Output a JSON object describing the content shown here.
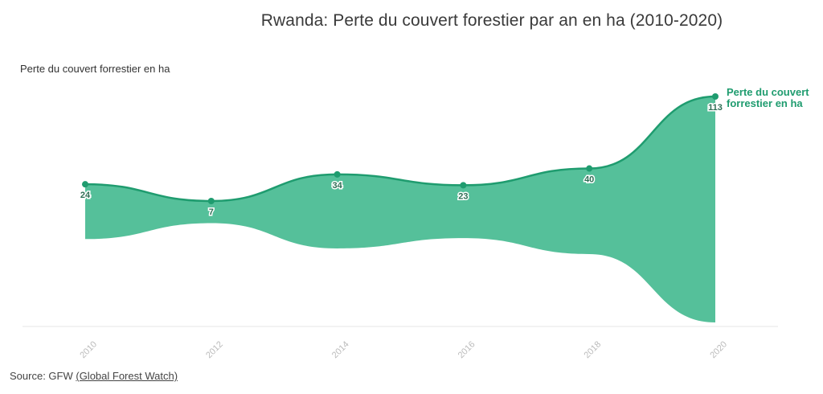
{
  "chart_data": {
    "type": "area",
    "title": "Rwanda: Perte du couvert forestier par an en ha (2010-2020)",
    "ylabel": "Perte du couvert forrestier en ha",
    "xlabel": "",
    "x": [
      "2010",
      "2012",
      "2014",
      "2016",
      "2018",
      "2020"
    ],
    "series": [
      {
        "name": "Perte du couvert forrestier en ha",
        "values": [
          24,
          7,
          34,
          23,
          40,
          113
        ]
      }
    ],
    "data_labels": [
      "24",
      "7",
      "34",
      "23",
      "40",
      "113"
    ],
    "series_label_lines": [
      "Perte du couvert",
      "forrestier en ha"
    ],
    "legend": "end-of-line label",
    "grid": false,
    "colors": {
      "fill": "#55c09a",
      "line": "#1f9c6f",
      "axis": "#e6e6e6",
      "tick": "#bbbbbb"
    }
  },
  "source": {
    "prefix": "Source: GFW ",
    "link_text": "(Global Forest Watch)"
  }
}
